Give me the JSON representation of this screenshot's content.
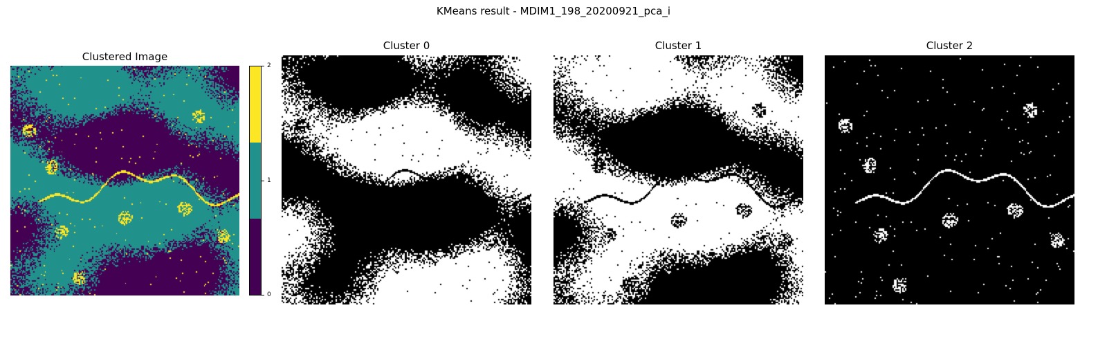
{
  "figure": {
    "suptitle": "KMeans result - MDIM1_198_20200921_pca_i"
  },
  "panels": {
    "clustered": {
      "title": "Clustered Image"
    },
    "cluster0": {
      "title": "Cluster 0"
    },
    "cluster1": {
      "title": "Cluster 1"
    },
    "cluster2": {
      "title": "Cluster 2"
    }
  },
  "colorbar": {
    "ticks": [
      "0",
      "1",
      "2"
    ],
    "colors": [
      "#440154",
      "#21918c",
      "#fde725"
    ]
  },
  "palette": {
    "mask_on": "#ffffff",
    "mask_off": "#000000"
  },
  "chart_data": {
    "type": "heatmap",
    "title": "KMeans result - MDIM1_198_20200921_pca_i",
    "colorbar_range": [
      0,
      2
    ],
    "colorbar_ticks": [
      0,
      1,
      2
    ],
    "clusters": [
      0,
      1,
      2
    ],
    "colormap": "viridis",
    "approx_area_fraction": {
      "cluster_0": 0.52,
      "cluster_1": 0.43,
      "cluster_2": 0.05
    },
    "panels": [
      "Clustered Image",
      "Cluster 0",
      "Cluster 1",
      "Cluster 2"
    ]
  }
}
